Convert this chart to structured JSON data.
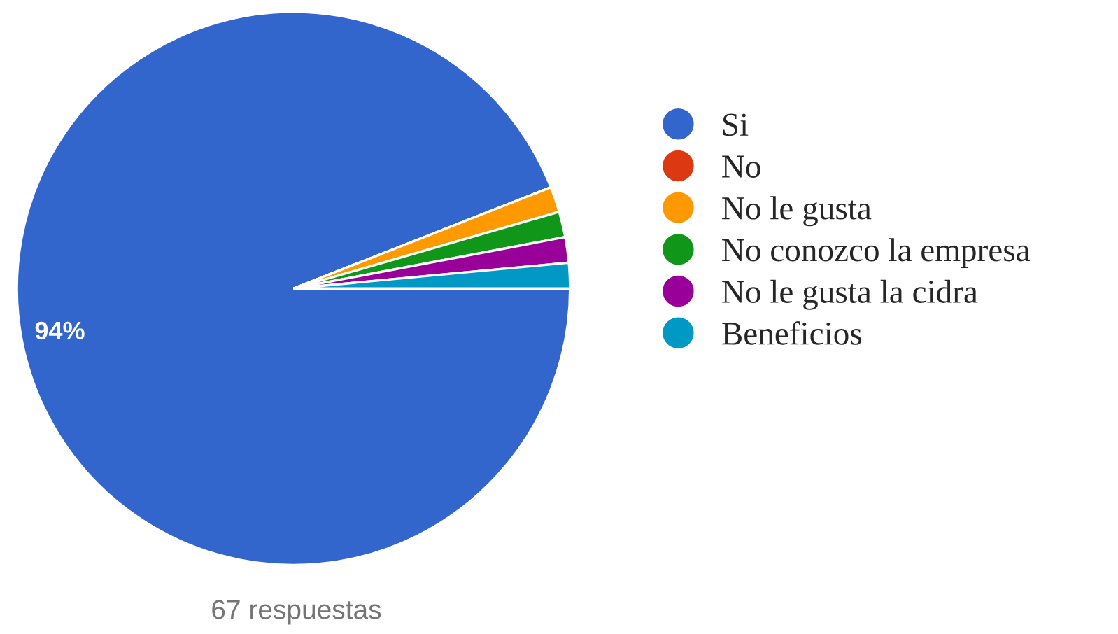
{
  "chart_data": {
    "type": "pie",
    "categories": [
      "Si",
      "No",
      "No le gusta",
      "No conozco la empresa",
      "No le gusta la cidra",
      "Beneficios"
    ],
    "values": [
      94.04,
      0,
      1.49,
      1.49,
      1.49,
      1.49
    ],
    "colors": [
      "#3366cc",
      "#dc3912",
      "#ff9900",
      "#109618",
      "#990099",
      "#0099c6"
    ],
    "value_labels": [
      "94%",
      null,
      null,
      null,
      null,
      null
    ],
    "legend": "right",
    "annotations": [
      "67 respuestas"
    ]
  }
}
